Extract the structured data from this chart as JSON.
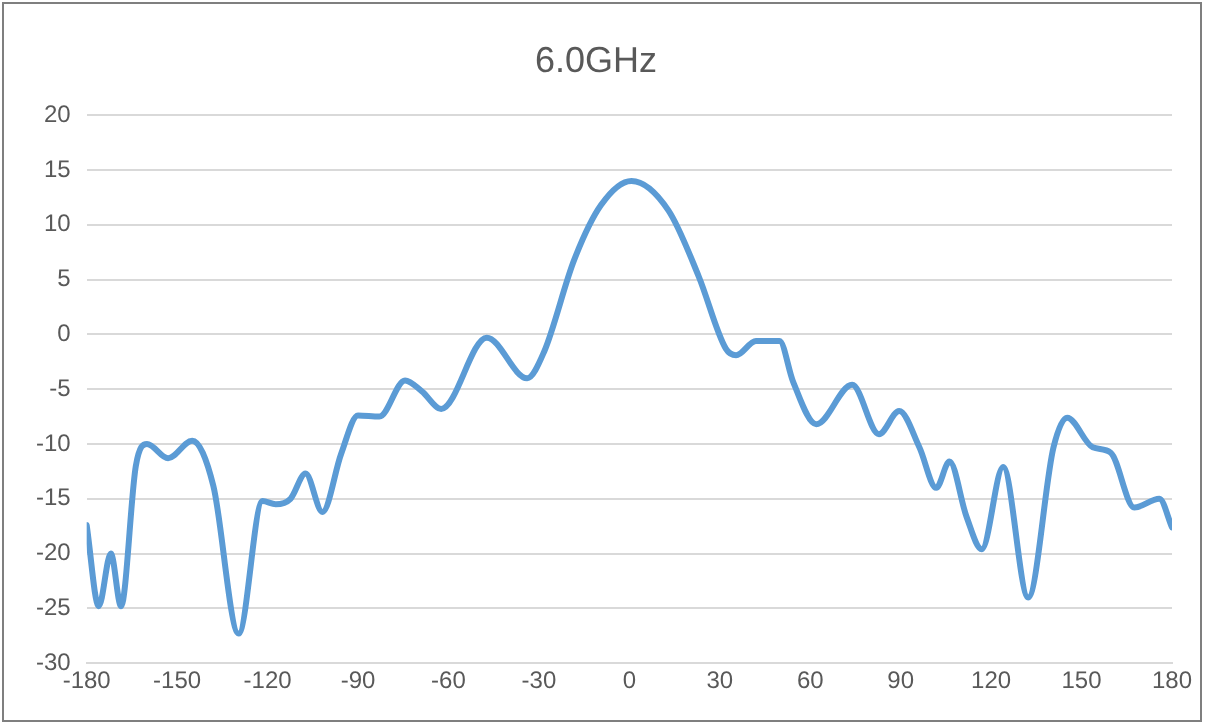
{
  "chart_data": {
    "type": "line",
    "title": "6.0GHz",
    "xlim": [
      -180,
      180
    ],
    "xticks": [
      -180,
      -150,
      -120,
      -90,
      -60,
      -30,
      0,
      30,
      60,
      90,
      120,
      150,
      180
    ],
    "ylim": [
      -30,
      20
    ],
    "yticks": [
      -30,
      -25,
      -20,
      -15,
      -10,
      -5,
      0,
      5,
      10,
      15,
      20
    ],
    "grid": "y",
    "legend": false,
    "marker": "none",
    "line_style": "solid",
    "series": [
      {
        "color": "#5b9bd5",
        "x": [
          -180,
          -176,
          -172,
          -168.6,
          -163.7,
          -160,
          -153,
          -145,
          -138,
          -129.6,
          -121.7,
          -117.3,
          -112.4,
          -107.4,
          -101.8,
          -95.6,
          -90,
          -82.9,
          -74.4,
          -68.8,
          -62.4,
          -47.3,
          -33.9,
          -28.3,
          -18.3,
          -9.4,
          0.7,
          13,
          23,
          32,
          35.4,
          42,
          49.8,
          54.3,
          62,
          73.9,
          82.8,
          89.5,
          96.2,
          101.8,
          106.2,
          111.8,
          116.9,
          124,
          132.3,
          140.7,
          145.2,
          153.7,
          159.7,
          167.5,
          175.8,
          180
        ],
        "values": [
          -17.4,
          -24.8,
          -20,
          -24.8,
          -12,
          -10,
          -11.3,
          -9.7,
          -13.8,
          -27.3,
          -15.2,
          -15.5,
          -15,
          -12.7,
          -16.2,
          -10.9,
          -7.4,
          -7.5,
          -4.2,
          -5.2,
          -6.8,
          -0.3,
          -4,
          -1.6,
          6.8,
          11.8,
          14,
          11.3,
          5.3,
          -1.3,
          -1.9,
          -0.6,
          -0.6,
          -4.3,
          -8.2,
          -4.6,
          -9.1,
          -7,
          -10.3,
          -14,
          -11.6,
          -16.6,
          -19.6,
          -12.1,
          -24,
          -10.3,
          -7.6,
          -10.3,
          -10.8,
          -15.8,
          -15,
          -17.6
        ]
      }
    ]
  }
}
